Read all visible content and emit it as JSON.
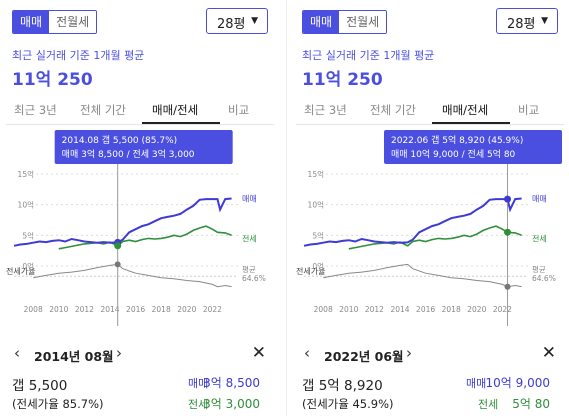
{
  "colors": {
    "accent": "#4b4fe0",
    "sale": "#3d3ad6",
    "jeonse": "#2f8f3a",
    "ratio": "#888888"
  },
  "panels": [
    {
      "trade_toggle": {
        "sale": "매매",
        "rent": "전월세",
        "selected": "매매"
      },
      "size_select": {
        "value": "28평"
      },
      "average": {
        "label": "최근 실거래 기준 1개월 평균",
        "value": "11억 250"
      },
      "tabs": [
        "최근 3년",
        "전체 기간",
        "매매/전세",
        "비교"
      ],
      "active_tab": "매매/전세",
      "tooltip": {
        "line1": "2014.08  갭 5,500 (85.7%)",
        "line2": "매매 3억 8,500 / 전세 3억 3,000"
      },
      "chart": {
        "y_ticks": [
          "15억",
          "10억",
          "5억",
          "0억"
        ],
        "x_ticks": [
          "2008",
          "2010",
          "2012",
          "2014",
          "2016",
          "2018",
          "2020",
          "2022"
        ],
        "ratio_label": "전세가율",
        "ratio_avg_label": "평균",
        "ratio_avg_value": "64.6%",
        "sale_legend": "매매",
        "jeonse_legend": "전세"
      },
      "detail": {
        "date": "2014년 08월",
        "gap": "갭 5,500",
        "ratio": "(전세가율 85.7%)",
        "sale_label": "매매",
        "sale_value": "3억 8,500",
        "jeonse_label": "전세",
        "jeonse_value": "3억 3,000"
      }
    },
    {
      "trade_toggle": {
        "sale": "매매",
        "rent": "전월세",
        "selected": "매매"
      },
      "size_select": {
        "value": "28평"
      },
      "average": {
        "label": "최근 실거래 기준 1개월 평균",
        "value": "11억 250"
      },
      "tabs": [
        "최근 3년",
        "전체 기간",
        "매매/전세",
        "비교"
      ],
      "active_tab": "매매/전세",
      "tooltip": {
        "line1": "2022.06  갭 5억 8,920 (45.9%)",
        "line2": "매매 10억 9,000 / 전세 5억 80"
      },
      "chart": {
        "y_ticks": [
          "15억",
          "10억",
          "5억",
          "0억"
        ],
        "x_ticks": [
          "2008",
          "2010",
          "2012",
          "2014",
          "2016",
          "2018",
          "2020",
          "2022"
        ],
        "ratio_label": "전세가율",
        "ratio_avg_label": "평균",
        "ratio_avg_value": "64.6%",
        "sale_legend": "매매",
        "jeonse_legend": "전세"
      },
      "detail": {
        "date": "2022년 06월",
        "gap": "갭 5억 8,920",
        "ratio": "(전세가율 45.9%)",
        "sale_label": "매매",
        "sale_value": "10억 9,000",
        "jeonse_label": "전세",
        "jeonse_value": "5억 80"
      }
    }
  ],
  "chart_data": {
    "type": "line",
    "x_range": [
      2006.5,
      2024.0
    ],
    "ylim_eok": [
      0,
      15
    ],
    "series": [
      {
        "name": "매매",
        "unit": "억",
        "points": [
          [
            2006.5,
            3.3
          ],
          [
            2007.0,
            3.5
          ],
          [
            2007.5,
            3.6
          ],
          [
            2008.0,
            3.8
          ],
          [
            2008.5,
            4.0
          ],
          [
            2009.0,
            3.9
          ],
          [
            2009.5,
            4.1
          ],
          [
            2010.0,
            4.2
          ],
          [
            2010.5,
            4.0
          ],
          [
            2011.0,
            4.4
          ],
          [
            2011.5,
            4.2
          ],
          [
            2012.0,
            4.0
          ],
          [
            2012.5,
            3.9
          ],
          [
            2013.0,
            3.8
          ],
          [
            2013.5,
            3.9
          ],
          [
            2014.0,
            3.8
          ],
          [
            2014.6,
            3.85
          ],
          [
            2015.0,
            4.3
          ],
          [
            2015.5,
            5.5
          ],
          [
            2016.0,
            6.0
          ],
          [
            2016.5,
            6.5
          ],
          [
            2017.0,
            6.8
          ],
          [
            2017.5,
            7.3
          ],
          [
            2018.0,
            7.8
          ],
          [
            2018.5,
            8.0
          ],
          [
            2019.0,
            8.2
          ],
          [
            2019.5,
            8.5
          ],
          [
            2020.0,
            9.2
          ],
          [
            2020.5,
            9.8
          ],
          [
            2021.0,
            10.8
          ],
          [
            2021.5,
            10.9
          ],
          [
            2022.0,
            10.9
          ],
          [
            2022.4,
            10.9
          ],
          [
            2022.6,
            9.2
          ],
          [
            2023.0,
            10.9
          ],
          [
            2023.5,
            11.0
          ]
        ]
      },
      {
        "name": "전세",
        "unit": "억",
        "points": [
          [
            2010.0,
            2.8
          ],
          [
            2010.5,
            3.0
          ],
          [
            2011.0,
            3.2
          ],
          [
            2011.5,
            3.4
          ],
          [
            2012.0,
            3.6
          ],
          [
            2012.5,
            3.7
          ],
          [
            2013.0,
            3.8
          ],
          [
            2013.5,
            3.6
          ],
          [
            2014.0,
            3.9
          ],
          [
            2014.6,
            3.3
          ],
          [
            2015.0,
            4.0
          ],
          [
            2015.5,
            4.2
          ],
          [
            2016.0,
            4.0
          ],
          [
            2016.5,
            4.3
          ],
          [
            2017.0,
            4.5
          ],
          [
            2017.5,
            4.4
          ],
          [
            2018.0,
            4.5
          ],
          [
            2018.5,
            4.7
          ],
          [
            2019.0,
            5.0
          ],
          [
            2019.5,
            4.8
          ],
          [
            2020.0,
            5.2
          ],
          [
            2020.5,
            5.8
          ],
          [
            2021.0,
            6.2
          ],
          [
            2021.5,
            6.5
          ],
          [
            2022.0,
            6.0
          ],
          [
            2022.4,
            5.5
          ],
          [
            2023.0,
            5.4
          ],
          [
            2023.5,
            5.0
          ]
        ]
      },
      {
        "name": "전세가율",
        "unit": "%",
        "points": [
          [
            2008.0,
            62
          ],
          [
            2009.0,
            66
          ],
          [
            2010.0,
            70
          ],
          [
            2011.0,
            72
          ],
          [
            2012.0,
            75
          ],
          [
            2013.0,
            80
          ],
          [
            2014.0,
            84
          ],
          [
            2014.6,
            85.7
          ],
          [
            2015.0,
            78
          ],
          [
            2016.0,
            70
          ],
          [
            2017.0,
            66
          ],
          [
            2018.0,
            62
          ],
          [
            2019.0,
            60
          ],
          [
            2020.0,
            57
          ],
          [
            2021.0,
            55
          ],
          [
            2022.0,
            50
          ],
          [
            2022.4,
            45.9
          ],
          [
            2023.0,
            48
          ],
          [
            2023.5,
            46
          ]
        ]
      }
    ],
    "ratio_average_pct": 64.6,
    "selected_x": [
      2014.6,
      2022.4
    ]
  }
}
